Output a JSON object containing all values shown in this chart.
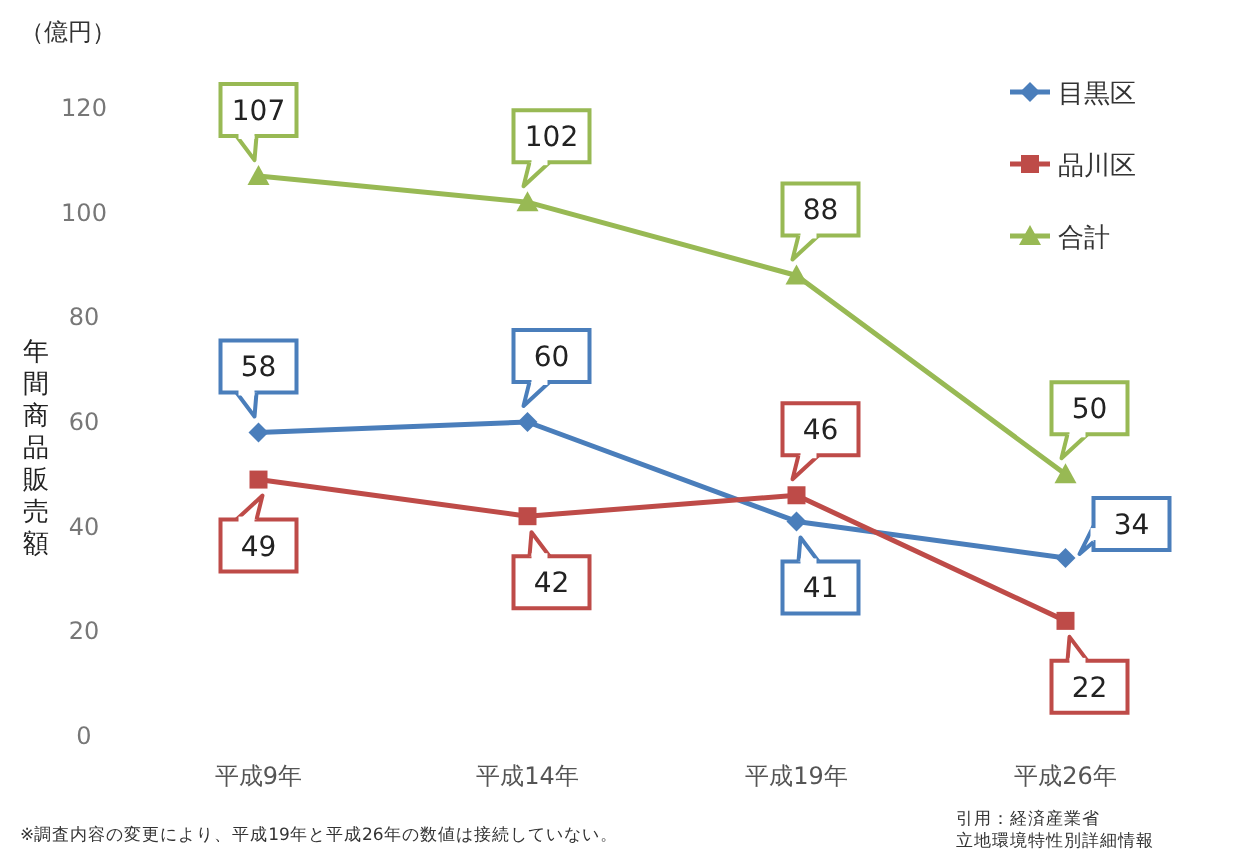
{
  "chart_data": {
    "type": "line",
    "ylabel": "年間商品販売額",
    "subtitle": "（億円）",
    "categories": [
      "平成9年",
      "平成14年",
      "平成19年",
      "平成26年"
    ],
    "ylim": [
      0,
      120
    ],
    "yticks": [
      0,
      20,
      40,
      60,
      80,
      100,
      120
    ],
    "series": [
      {
        "name": "目黒区",
        "color": "#4a7ebb",
        "marker": "diamond",
        "values": [
          58,
          60,
          41,
          34
        ]
      },
      {
        "name": "品川区",
        "color": "#be4b48",
        "marker": "square",
        "values": [
          49,
          42,
          46,
          22
        ]
      },
      {
        "name": "合計",
        "color": "#98b954",
        "marker": "triangle",
        "values": [
          107,
          102,
          88,
          50
        ]
      }
    ],
    "data_labels": true,
    "legend": "top right",
    "grid": false,
    "annotations": [
      "※調査内容の変更により、平成19年と平成26年の数値は接続していない。",
      "引用：経済産業省",
      "立地環境特性別詳細情報"
    ]
  }
}
